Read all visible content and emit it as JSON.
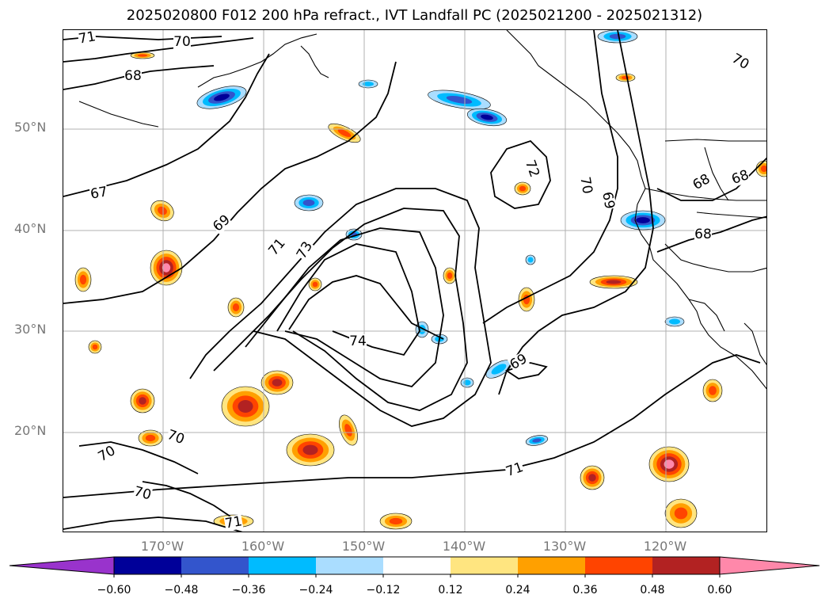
{
  "title": "2025020800 F012 200 hPa refract., IVT Landfall PC (2025021200 - 2025021312)",
  "map": {
    "lat_ticks": [
      {
        "label": "50°N",
        "lat": 50
      },
      {
        "label": "40°N",
        "lat": 40
      },
      {
        "label": "30°N",
        "lat": 30
      },
      {
        "label": "20°N",
        "lat": 20
      }
    ],
    "lon_ticks": [
      {
        "label": "170°W",
        "lon": -170
      },
      {
        "label": "160°W",
        "lon": -160
      },
      {
        "label": "150°W",
        "lon": -150
      },
      {
        "label": "140°W",
        "lon": -140
      },
      {
        "label": "130°W",
        "lon": -130
      },
      {
        "label": "120°W",
        "lon": -120
      }
    ],
    "lon_range": [
      -180,
      -110
    ],
    "lat_range": [
      10,
      60
    ],
    "contour_labels": [
      "71",
      "70",
      "68",
      "67",
      "69",
      "71",
      "73",
      "74",
      "72",
      "70",
      "69",
      "68",
      "68",
      "68",
      "69",
      "71",
      "70",
      "70",
      "70",
      "71",
      "70"
    ],
    "contour_color": "#000000",
    "coastline_color": "#000000",
    "grid": true
  },
  "colorbar": {
    "colors": [
      "#9933cc",
      "#000099",
      "#3355cc",
      "#00bbff",
      "#aaddff",
      "#ffffff",
      "#ffe580",
      "#ffa000",
      "#ff4400",
      "#b22222",
      "#ff88aa"
    ],
    "tick_labels": [
      "−0.60",
      "−0.48",
      "−0.36",
      "−0.24",
      "−0.12",
      "0.12",
      "0.24",
      "0.36",
      "0.48",
      "0.60"
    ],
    "extend": "both"
  }
}
